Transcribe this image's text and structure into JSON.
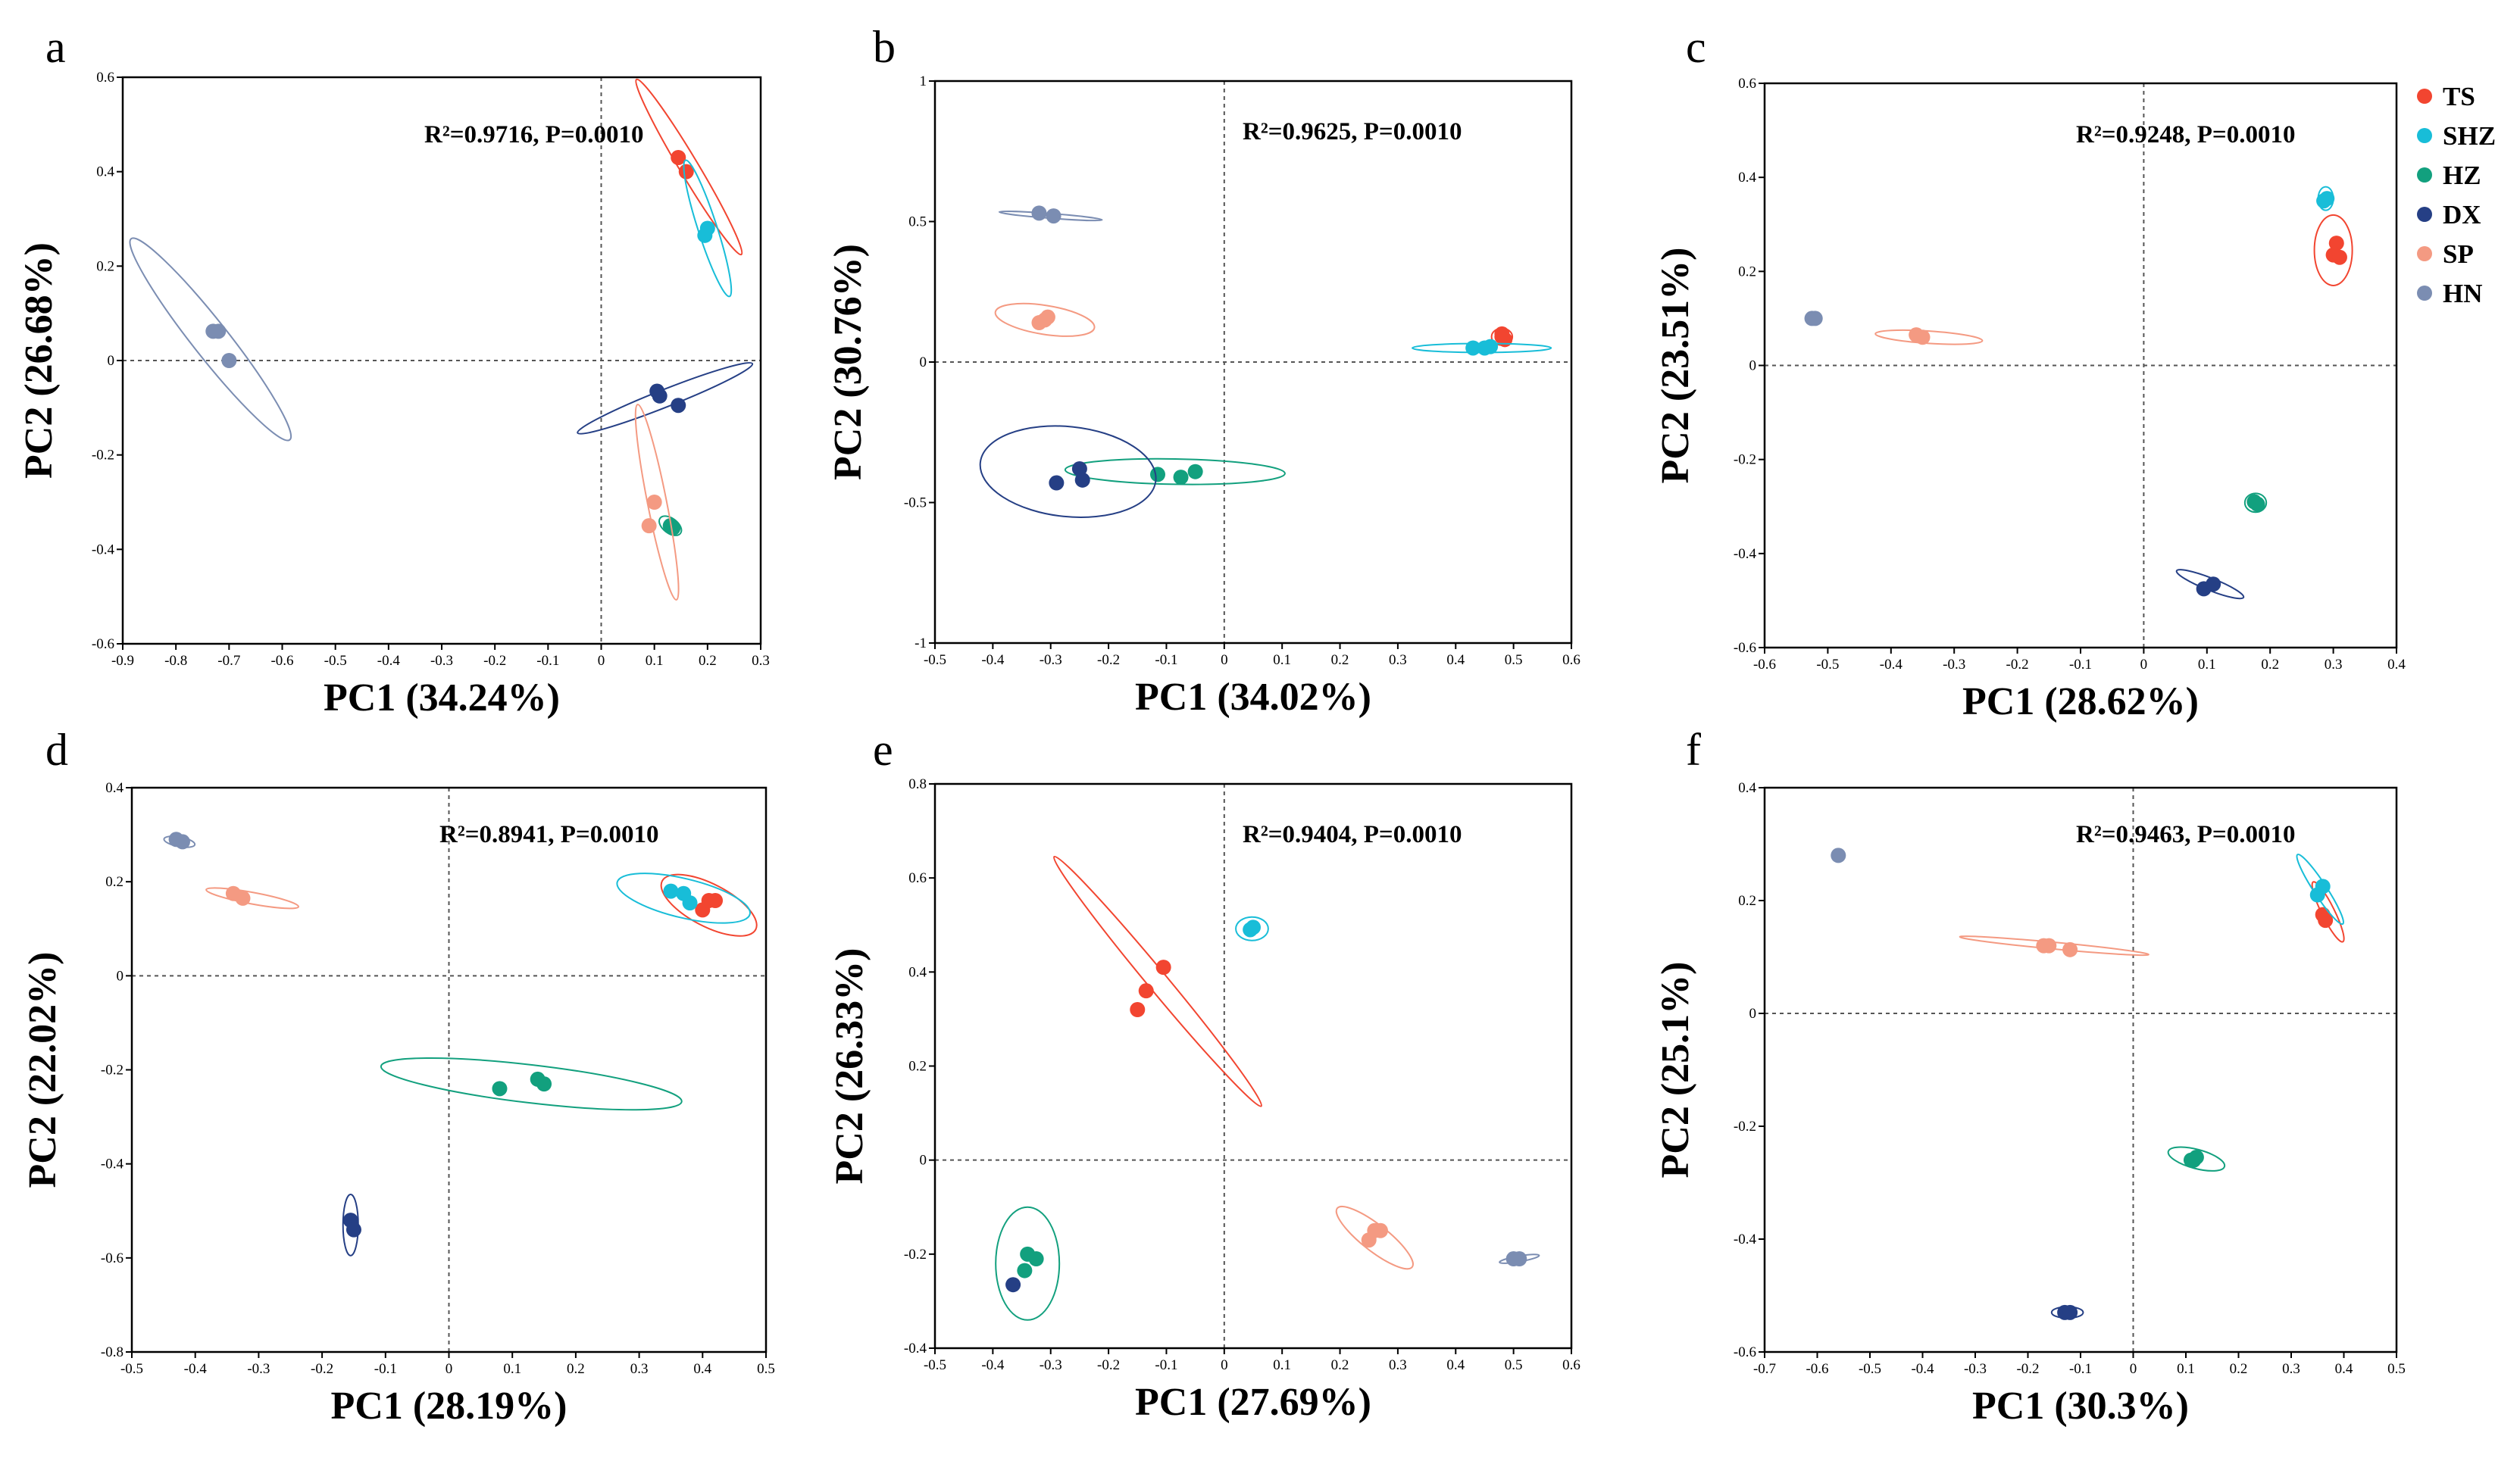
{
  "figure_domain": "PCoA panels",
  "legend": [
    {
      "key": "TS",
      "color": "#F24530"
    },
    {
      "key": "SHZ",
      "color": "#18BDD8"
    },
    {
      "key": "HZ",
      "color": "#12A07E"
    },
    {
      "key": "DX",
      "color": "#253F85"
    },
    {
      "key": "SP",
      "color": "#F49A82"
    },
    {
      "key": "HN",
      "color": "#7B8DB2"
    }
  ],
  "chart_data": [
    {
      "type": "scatter",
      "panel": "a",
      "xlabel": "PC1 (34.24%)",
      "ylabel": "PC2 (26.68%)",
      "annotation": "R²=0.9716, P=0.0010",
      "xlim": [
        -0.9,
        0.3
      ],
      "ylim": [
        -0.6,
        0.6
      ],
      "xticks": [
        "-0.9",
        "-0.8",
        "-0.7",
        "-0.6",
        "-0.5",
        "-0.4",
        "-0.3",
        "-0.2",
        "-0.1",
        "0",
        "0.1",
        "0.2",
        "0.3"
      ],
      "yticks": [
        "-0.6",
        "-0.4",
        "-0.2",
        "0",
        "0.2",
        "0.4",
        "0.6"
      ],
      "series": [
        {
          "name": "TS",
          "points": [
            [
              0.145,
              0.43
            ],
            [
              0.16,
              0.4
            ]
          ],
          "ellipse": {
            "cx": 0.165,
            "cy": 0.41,
            "rx": 0.21,
            "ry": 0.018,
            "angle": -62
          }
        },
        {
          "name": "SHZ",
          "points": [
            [
              0.195,
              0.265
            ],
            [
              0.2,
              0.28
            ]
          ],
          "ellipse": {
            "cx": 0.2,
            "cy": 0.28,
            "rx": 0.15,
            "ry": 0.018,
            "angle": -74
          }
        },
        {
          "name": "HZ",
          "points": [
            [
              0.13,
              -0.35
            ],
            [
              0.135,
              -0.355
            ]
          ],
          "ellipse": {
            "cx": 0.13,
            "cy": -0.35,
            "rx": 0.025,
            "ry": 0.015,
            "angle": -40
          }
        },
        {
          "name": "DX",
          "points": [
            [
              0.105,
              -0.065
            ],
            [
              0.11,
              -0.075
            ],
            [
              0.145,
              -0.095
            ]
          ],
          "ellipse": {
            "cx": 0.12,
            "cy": -0.08,
            "rx": 0.18,
            "ry": 0.018,
            "angle": 24
          }
        },
        {
          "name": "SP",
          "points": [
            [
              0.1,
              -0.3
            ],
            [
              0.09,
              -0.35
            ]
          ],
          "ellipse": {
            "cx": 0.105,
            "cy": -0.3,
            "rx": 0.21,
            "ry": 0.018,
            "angle": -80
          }
        },
        {
          "name": "HN",
          "points": [
            [
              -0.73,
              0.062
            ],
            [
              -0.72,
              0.062
            ],
            [
              -0.7,
              0.0
            ]
          ],
          "ellipse": {
            "cx": -0.735,
            "cy": 0.045,
            "rx": 0.26,
            "ry": 0.035,
            "angle": -55
          }
        }
      ]
    },
    {
      "type": "scatter",
      "panel": "b",
      "xlabel": "PC1 (34.02%)",
      "ylabel": "PC2 (30.76%)",
      "annotation": "R²=0.9625, P=0.0010",
      "xlim": [
        -0.5,
        0.6
      ],
      "ylim": [
        -1,
        1
      ],
      "xticks": [
        "-0.5",
        "-0.4",
        "-0.3",
        "-0.2",
        "-0.1",
        "0",
        "0.1",
        "0.2",
        "0.3",
        "0.4",
        "0.5",
        "0.6"
      ],
      "yticks": [
        "-1",
        "-0.5",
        "0",
        "0.5",
        "1"
      ],
      "series": [
        {
          "name": "TS",
          "points": [
            [
              0.48,
              0.1
            ],
            [
              0.485,
              0.08
            ],
            [
              0.48,
              0.09
            ]
          ],
          "ellipse": {
            "cx": 0.48,
            "cy": 0.09,
            "rx": 0.018,
            "ry": 0.03,
            "angle": 0
          }
        },
        {
          "name": "SHZ",
          "points": [
            [
              0.43,
              0.05
            ],
            [
              0.45,
              0.05
            ],
            [
              0.46,
              0.055
            ]
          ],
          "ellipse": {
            "cx": 0.445,
            "cy": 0.05,
            "rx": 0.12,
            "ry": 0.016,
            "angle": 0
          }
        },
        {
          "name": "HZ",
          "points": [
            [
              -0.115,
              -0.4
            ],
            [
              -0.075,
              -0.41
            ],
            [
              -0.05,
              -0.39
            ]
          ],
          "ellipse": {
            "cx": -0.085,
            "cy": -0.39,
            "rx": 0.19,
            "ry": 0.045,
            "angle": -2
          }
        },
        {
          "name": "DX",
          "points": [
            [
              -0.29,
              -0.43
            ],
            [
              -0.245,
              -0.42
            ],
            [
              -0.25,
              -0.38
            ]
          ],
          "ellipse": {
            "cx": -0.27,
            "cy": -0.39,
            "rx": 0.155,
            "ry": 0.15,
            "angle": -12
          }
        },
        {
          "name": "SP",
          "points": [
            [
              -0.32,
              0.14
            ],
            [
              -0.305,
              0.16
            ],
            [
              -0.31,
              0.15
            ]
          ],
          "ellipse": {
            "cx": -0.31,
            "cy": 0.15,
            "rx": 0.09,
            "ry": 0.045,
            "angle": -18
          }
        },
        {
          "name": "HN",
          "points": [
            [
              -0.32,
              0.53
            ],
            [
              -0.295,
              0.52
            ]
          ],
          "ellipse": {
            "cx": -0.3,
            "cy": 0.52,
            "rx": 0.09,
            "ry": 0.008,
            "angle": -9
          }
        }
      ]
    },
    {
      "type": "scatter",
      "panel": "c",
      "xlabel": "PC1 (28.62%)",
      "ylabel": "PC2 (23.51%)",
      "annotation": "R²=0.9248, P=0.0010",
      "xlim": [
        -0.6,
        0.4
      ],
      "ylim": [
        -0.6,
        0.6
      ],
      "xticks": [
        "-0.6",
        "-0.5",
        "-0.4",
        "-0.3",
        "-0.2",
        "-0.1",
        "0",
        "0.1",
        "0.2",
        "0.3",
        "0.4"
      ],
      "yticks": [
        "-0.6",
        "-0.4",
        "-0.2",
        "0",
        "0.2",
        "0.4",
        "0.6"
      ],
      "series": [
        {
          "name": "TS",
          "points": [
            [
              0.305,
              0.26
            ],
            [
              0.3,
              0.235
            ],
            [
              0.31,
              0.23
            ]
          ],
          "ellipse": {
            "cx": 0.3,
            "cy": 0.245,
            "rx": 0.03,
            "ry": 0.075,
            "angle": 0
          }
        },
        {
          "name": "SHZ",
          "points": [
            [
              0.285,
              0.35
            ],
            [
              0.29,
              0.355
            ]
          ],
          "ellipse": {
            "cx": 0.288,
            "cy": 0.355,
            "rx": 0.012,
            "ry": 0.025,
            "angle": 0
          }
        },
        {
          "name": "HZ",
          "points": [
            [
              0.175,
              -0.29
            ],
            [
              0.18,
              -0.295
            ]
          ],
          "ellipse": {
            "cx": 0.177,
            "cy": -0.292,
            "rx": 0.017,
            "ry": 0.02,
            "angle": 0
          }
        },
        {
          "name": "DX",
          "points": [
            [
              0.095,
              -0.475
            ],
            [
              0.11,
              -0.465
            ]
          ],
          "ellipse": {
            "cx": 0.105,
            "cy": -0.465,
            "rx": 0.06,
            "ry": 0.012,
            "angle": -28
          }
        },
        {
          "name": "SP",
          "points": [
            [
              -0.36,
              0.065
            ],
            [
              -0.35,
              0.06
            ]
          ],
          "ellipse": {
            "cx": -0.34,
            "cy": 0.06,
            "rx": 0.085,
            "ry": 0.013,
            "angle": -5
          }
        },
        {
          "name": "HN",
          "points": [
            [
              -0.525,
              0.1
            ],
            [
              -0.52,
              0.1
            ]
          ],
          "ellipse": {
            "cx": -0.522,
            "cy": 0.1,
            "rx": 0.012,
            "ry": 0.01,
            "angle": 0
          }
        }
      ]
    },
    {
      "type": "scatter",
      "panel": "d",
      "xlabel": "PC1 (28.19%)",
      "ylabel": "PC2 (22.02%)",
      "annotation": "R²=0.8941, P=0.0010",
      "xlim": [
        -0.5,
        0.5
      ],
      "ylim": [
        -0.8,
        0.4
      ],
      "xticks": [
        "-0.5",
        "-0.4",
        "-0.3",
        "-0.2",
        "-0.1",
        "0",
        "0.1",
        "0.2",
        "0.3",
        "0.4",
        "0.5"
      ],
      "yticks": [
        "-0.8",
        "-0.6",
        "-0.4",
        "-0.2",
        "0",
        "0.2",
        "0.4"
      ],
      "series": [
        {
          "name": "TS",
          "points": [
            [
              0.42,
              0.16
            ],
            [
              0.4,
              0.14
            ],
            [
              0.41,
              0.16
            ]
          ],
          "ellipse": {
            "cx": 0.41,
            "cy": 0.15,
            "rx": 0.09,
            "ry": 0.04,
            "angle": -35
          }
        },
        {
          "name": "SHZ",
          "points": [
            [
              0.35,
              0.18
            ],
            [
              0.37,
              0.175
            ],
            [
              0.38,
              0.155
            ]
          ],
          "ellipse": {
            "cx": 0.37,
            "cy": 0.165,
            "rx": 0.11,
            "ry": 0.04,
            "angle": -18
          }
        },
        {
          "name": "HZ",
          "points": [
            [
              0.08,
              -0.24
            ],
            [
              0.14,
              -0.22
            ],
            [
              0.15,
              -0.23
            ]
          ],
          "ellipse": {
            "cx": 0.13,
            "cy": -0.23,
            "rx": 0.24,
            "ry": 0.04,
            "angle": -9
          }
        },
        {
          "name": "DX",
          "points": [
            [
              -0.155,
              -0.52
            ],
            [
              -0.15,
              -0.54
            ]
          ],
          "ellipse": {
            "cx": -0.155,
            "cy": -0.53,
            "rx": 0.012,
            "ry": 0.065,
            "angle": 0
          }
        },
        {
          "name": "SP",
          "points": [
            [
              -0.34,
              0.175
            ],
            [
              -0.325,
              0.165
            ]
          ],
          "ellipse": {
            "cx": -0.31,
            "cy": 0.165,
            "rx": 0.075,
            "ry": 0.012,
            "angle": -14
          }
        },
        {
          "name": "HN",
          "points": [
            [
              -0.43,
              0.29
            ],
            [
              -0.42,
              0.285
            ]
          ],
          "ellipse": {
            "cx": -0.425,
            "cy": 0.285,
            "rx": 0.025,
            "ry": 0.01,
            "angle": -14
          }
        }
      ]
    },
    {
      "type": "scatter",
      "panel": "e",
      "xlabel": "PC1 (27.69%)",
      "ylabel": "PC2 (26.33%)",
      "annotation": "R²=0.9404, P=0.0010",
      "xlim": [
        -0.5,
        0.6
      ],
      "ylim": [
        -0.4,
        0.8
      ],
      "xticks": [
        "-0.5",
        "-0.4",
        "-0.3",
        "-0.2",
        "-0.1",
        "0",
        "0.1",
        "0.2",
        "0.3",
        "0.4",
        "0.5",
        "0.6"
      ],
      "yticks": [
        "-0.4",
        "-0.2",
        "0",
        "0.2",
        "0.4",
        "0.6",
        "0.8"
      ],
      "series": [
        {
          "name": "TS",
          "points": [
            [
              -0.15,
              0.32
            ],
            [
              -0.135,
              0.36
            ],
            [
              -0.105,
              0.41
            ]
          ],
          "ellipse": {
            "cx": -0.115,
            "cy": 0.38,
            "rx": 0.32,
            "ry": 0.018,
            "angle": -56
          }
        },
        {
          "name": "SHZ",
          "points": [
            [
              0.045,
              0.49
            ],
            [
              0.05,
              0.495
            ]
          ],
          "ellipse": {
            "cx": 0.048,
            "cy": 0.492,
            "rx": 0.028,
            "ry": 0.025,
            "angle": 0
          }
        },
        {
          "name": "HZ",
          "points": [
            [
              -0.34,
              -0.2
            ],
            [
              -0.325,
              -0.21
            ],
            [
              -0.345,
              -0.235
            ]
          ],
          "ellipse": {
            "cx": -0.34,
            "cy": -0.22,
            "rx": 0.055,
            "ry": 0.12,
            "angle": 0
          }
        },
        {
          "name": "DX",
          "points": [
            [
              -0.365,
              -0.265
            ]
          ],
          "ellipse": null
        },
        {
          "name": "SP",
          "points": [
            [
              0.25,
              -0.17
            ],
            [
              0.26,
              -0.15
            ],
            [
              0.27,
              -0.15
            ]
          ],
          "ellipse": {
            "cx": 0.26,
            "cy": -0.165,
            "rx": 0.09,
            "ry": 0.025,
            "angle": -44
          }
        },
        {
          "name": "HN",
          "points": [
            [
              0.5,
              -0.21
            ],
            [
              0.51,
              -0.21
            ]
          ],
          "ellipse": {
            "cx": 0.51,
            "cy": -0.21,
            "rx": 0.035,
            "ry": 0.006,
            "angle": 12
          }
        }
      ]
    },
    {
      "type": "scatter",
      "panel": "f",
      "xlabel": "PC1 (30.3%)",
      "ylabel": "PC2 (25.1%)",
      "annotation": "R²=0.9463, P=0.0010",
      "xlim": [
        -0.7,
        0.5
      ],
      "ylim": [
        -0.6,
        0.4
      ],
      "xticks": [
        "-0.7",
        "-0.6",
        "-0.5",
        "-0.4",
        "-0.3",
        "-0.2",
        "-0.1",
        "0",
        "0.1",
        "0.2",
        "0.3",
        "0.4",
        "0.5"
      ],
      "yticks": [
        "-0.6",
        "-0.4",
        "-0.2",
        "0",
        "0.2",
        "0.4"
      ],
      "series": [
        {
          "name": "TS",
          "points": [
            [
              0.36,
              0.175
            ],
            [
              0.365,
              0.165
            ]
          ],
          "ellipse": {
            "cx": 0.37,
            "cy": 0.18,
            "rx": 0.06,
            "ry": 0.012,
            "angle": -62
          }
        },
        {
          "name": "SHZ",
          "points": [
            [
              0.35,
              0.21
            ],
            [
              0.36,
              0.225
            ]
          ],
          "ellipse": {
            "cx": 0.355,
            "cy": 0.22,
            "rx": 0.075,
            "ry": 0.012,
            "angle": -55
          }
        },
        {
          "name": "HZ",
          "points": [
            [
              0.11,
              -0.26
            ],
            [
              0.12,
              -0.255
            ],
            [
              0.115,
              -0.26
            ]
          ],
          "ellipse": {
            "cx": 0.12,
            "cy": -0.258,
            "rx": 0.055,
            "ry": 0.017,
            "angle": -14
          }
        },
        {
          "name": "DX",
          "points": [
            [
              -0.13,
              -0.53
            ],
            [
              -0.12,
              -0.53
            ]
          ],
          "ellipse": {
            "cx": -0.125,
            "cy": -0.53,
            "rx": 0.03,
            "ry": 0.01,
            "angle": 0
          }
        },
        {
          "name": "SP",
          "points": [
            [
              -0.17,
              0.12
            ],
            [
              -0.16,
              0.12
            ],
            [
              -0.12,
              0.113
            ]
          ],
          "ellipse": {
            "cx": -0.15,
            "cy": 0.12,
            "rx": 0.18,
            "ry": 0.006,
            "angle": -5
          }
        },
        {
          "name": "HN",
          "points": [
            [
              -0.56,
              0.28
            ]
          ],
          "ellipse": {
            "cx": -0.56,
            "cy": 0.282,
            "rx": 0.012,
            "ry": 0.01,
            "angle": 0
          }
        }
      ]
    }
  ]
}
